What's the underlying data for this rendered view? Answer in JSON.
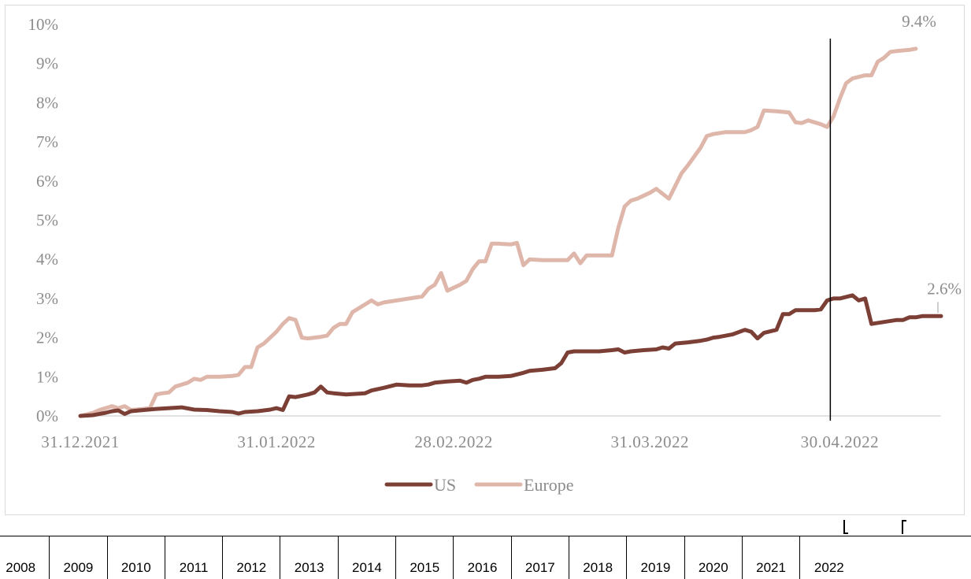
{
  "chart_data": {
    "type": "line",
    "y_ticks": [
      "0%",
      "1%",
      "2%",
      "3%",
      "4%",
      "5%",
      "6%",
      "7%",
      "8%",
      "9%",
      "10%"
    ],
    "ylim": [
      0,
      10
    ],
    "x_ticks": [
      {
        "label": "31.12.2021",
        "day": 0
      },
      {
        "label": "31.01.2022",
        "day": 31
      },
      {
        "label": "28.02.2022",
        "day": 59
      },
      {
        "label": "31.03.2022",
        "day": 90
      },
      {
        "label": "30.04.2022",
        "day": 120
      }
    ],
    "xlim": [
      0,
      130
    ],
    "vertical_marker_day": 118.5,
    "grid": false,
    "legend_position": "bottom",
    "series": [
      {
        "name": "US",
        "color": "#7b3f35",
        "end_label": "2.6%",
        "points": [
          [
            0,
            0
          ],
          [
            2,
            0.02
          ],
          [
            4,
            0.08
          ],
          [
            5,
            0.12
          ],
          [
            6,
            0.14
          ],
          [
            7,
            0.05
          ],
          [
            8,
            0.12
          ],
          [
            10,
            0.15
          ],
          [
            12,
            0.18
          ],
          [
            14,
            0.2
          ],
          [
            16,
            0.22
          ],
          [
            18,
            0.16
          ],
          [
            20,
            0.15
          ],
          [
            22,
            0.12
          ],
          [
            24,
            0.1
          ],
          [
            25,
            0.06
          ],
          [
            26,
            0.1
          ],
          [
            28,
            0.12
          ],
          [
            30,
            0.16
          ],
          [
            31,
            0.2
          ],
          [
            32,
            0.15
          ],
          [
            33,
            0.5
          ],
          [
            34,
            0.48
          ],
          [
            36,
            0.55
          ],
          [
            37,
            0.6
          ],
          [
            38,
            0.75
          ],
          [
            39,
            0.6
          ],
          [
            40,
            0.58
          ],
          [
            42,
            0.55
          ],
          [
            45,
            0.58
          ],
          [
            46,
            0.65
          ],
          [
            48,
            0.72
          ],
          [
            50,
            0.8
          ],
          [
            52,
            0.78
          ],
          [
            54,
            0.78
          ],
          [
            55,
            0.8
          ],
          [
            56,
            0.85
          ],
          [
            58,
            0.88
          ],
          [
            60,
            0.9
          ],
          [
            61,
            0.85
          ],
          [
            62,
            0.92
          ],
          [
            63,
            0.95
          ],
          [
            64,
            1.0
          ],
          [
            66,
            1.0
          ],
          [
            68,
            1.02
          ],
          [
            70,
            1.1
          ],
          [
            71,
            1.15
          ],
          [
            73,
            1.18
          ],
          [
            75,
            1.22
          ],
          [
            76,
            1.35
          ],
          [
            77,
            1.62
          ],
          [
            78,
            1.65
          ],
          [
            80,
            1.65
          ],
          [
            82,
            1.65
          ],
          [
            84,
            1.68
          ],
          [
            85,
            1.7
          ],
          [
            86,
            1.62
          ],
          [
            87,
            1.65
          ],
          [
            89,
            1.68
          ],
          [
            91,
            1.7
          ],
          [
            92,
            1.75
          ],
          [
            93,
            1.72
          ],
          [
            94,
            1.85
          ],
          [
            96,
            1.88
          ],
          [
            98,
            1.92
          ],
          [
            99,
            1.95
          ],
          [
            100,
            2.0
          ],
          [
            101,
            2.02
          ],
          [
            103,
            2.08
          ],
          [
            105,
            2.2
          ],
          [
            106,
            2.15
          ],
          [
            107,
            1.98
          ],
          [
            108,
            2.12
          ],
          [
            110,
            2.2
          ],
          [
            111,
            2.6
          ],
          [
            112,
            2.6
          ],
          [
            113,
            2.7
          ],
          [
            115,
            2.7
          ],
          [
            116,
            2.7
          ],
          [
            117,
            2.72
          ],
          [
            118,
            2.95
          ],
          [
            119,
            3.0
          ],
          [
            120,
            3.0
          ],
          [
            122,
            3.08
          ],
          [
            123,
            2.95
          ],
          [
            124,
            3.0
          ],
          [
            125,
            2.35
          ],
          [
            127,
            2.4
          ],
          [
            129,
            2.45
          ],
          [
            130,
            2.45
          ],
          [
            131,
            2.52
          ],
          [
            132,
            2.52
          ],
          [
            133,
            2.55
          ],
          [
            135,
            2.55
          ],
          [
            136,
            2.55
          ]
        ]
      },
      {
        "name": "Europe",
        "color": "#dfb6aa",
        "end_label": "9.4%",
        "points": [
          [
            0,
            0
          ],
          [
            2,
            0.08
          ],
          [
            3,
            0.15
          ],
          [
            4,
            0.2
          ],
          [
            5,
            0.25
          ],
          [
            6,
            0.2
          ],
          [
            7,
            0.25
          ],
          [
            8,
            0.15
          ],
          [
            10,
            0.18
          ],
          [
            11,
            0.2
          ],
          [
            12,
            0.55
          ],
          [
            13,
            0.58
          ],
          [
            14,
            0.6
          ],
          [
            15,
            0.75
          ],
          [
            17,
            0.85
          ],
          [
            18,
            0.95
          ],
          [
            19,
            0.92
          ],
          [
            20,
            1.0
          ],
          [
            22,
            1.0
          ],
          [
            24,
            1.02
          ],
          [
            25,
            1.05
          ],
          [
            26,
            1.25
          ],
          [
            27,
            1.25
          ],
          [
            28,
            1.75
          ],
          [
            29,
            1.85
          ],
          [
            30,
            2.0
          ],
          [
            31,
            2.15
          ],
          [
            32,
            2.35
          ],
          [
            33,
            2.5
          ],
          [
            34,
            2.45
          ],
          [
            35,
            2.0
          ],
          [
            36,
            1.98
          ],
          [
            38,
            2.02
          ],
          [
            39,
            2.05
          ],
          [
            40,
            2.25
          ],
          [
            41,
            2.35
          ],
          [
            42,
            2.35
          ],
          [
            43,
            2.65
          ],
          [
            45,
            2.85
          ],
          [
            46,
            2.95
          ],
          [
            47,
            2.85
          ],
          [
            48,
            2.9
          ],
          [
            50,
            2.95
          ],
          [
            52,
            3.0
          ],
          [
            54,
            3.05
          ],
          [
            55,
            3.25
          ],
          [
            56,
            3.35
          ],
          [
            57,
            3.65
          ],
          [
            58,
            3.2
          ],
          [
            60,
            3.35
          ],
          [
            61,
            3.45
          ],
          [
            62,
            3.75
          ],
          [
            63,
            3.95
          ],
          [
            64,
            3.95
          ],
          [
            65,
            4.4
          ],
          [
            66,
            4.4
          ],
          [
            68,
            4.38
          ],
          [
            69,
            4.42
          ],
          [
            70,
            3.85
          ],
          [
            71,
            4.0
          ],
          [
            73,
            3.98
          ],
          [
            75,
            3.98
          ],
          [
            77,
            3.98
          ],
          [
            78,
            4.15
          ],
          [
            79,
            3.9
          ],
          [
            80,
            4.1
          ],
          [
            82,
            4.1
          ],
          [
            84,
            4.1
          ],
          [
            85,
            4.8
          ],
          [
            86,
            5.35
          ],
          [
            87,
            5.5
          ],
          [
            88,
            5.55
          ],
          [
            90,
            5.7
          ],
          [
            91,
            5.8
          ],
          [
            93,
            5.55
          ],
          [
            95,
            6.2
          ],
          [
            96,
            6.4
          ],
          [
            98,
            6.85
          ],
          [
            99,
            7.15
          ],
          [
            100,
            7.2
          ],
          [
            102,
            7.25
          ],
          [
            104,
            7.25
          ],
          [
            105,
            7.25
          ],
          [
            106,
            7.3
          ],
          [
            107,
            7.38
          ],
          [
            108,
            7.8
          ],
          [
            110,
            7.78
          ],
          [
            112,
            7.75
          ],
          [
            113,
            7.5
          ],
          [
            114,
            7.48
          ],
          [
            115,
            7.55
          ],
          [
            117,
            7.45
          ],
          [
            118,
            7.38
          ],
          [
            119,
            7.65
          ],
          [
            120,
            8.1
          ],
          [
            121,
            8.5
          ],
          [
            122,
            8.62
          ],
          [
            124,
            8.7
          ],
          [
            125,
            8.7
          ],
          [
            126,
            9.05
          ],
          [
            127,
            9.15
          ],
          [
            128,
            9.3
          ],
          [
            129,
            9.32
          ],
          [
            131,
            9.35
          ],
          [
            132,
            9.38
          ]
        ]
      }
    ]
  },
  "year_strip": [
    "2008",
    "2009",
    "2010",
    "2011",
    "2012",
    "2013",
    "2014",
    "2015",
    "2016",
    "2017",
    "2018",
    "2019",
    "2020",
    "2021",
    "2022"
  ]
}
